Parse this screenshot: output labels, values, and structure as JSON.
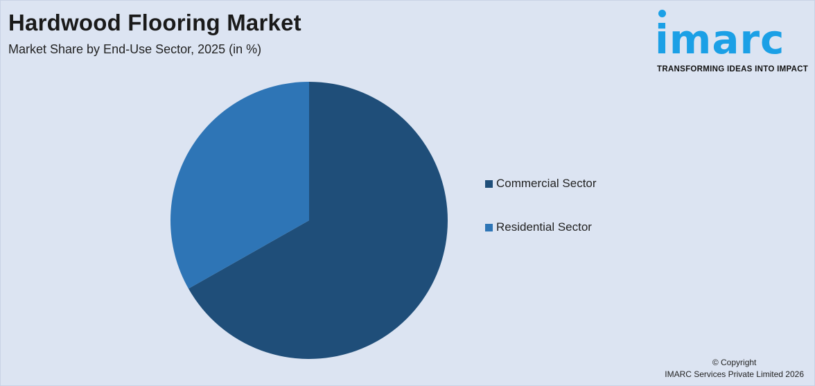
{
  "title": "Hardwood Flooring Market",
  "subtitle": "Market Share by End-Use Sector, 2025 (in %)",
  "logo": {
    "word": "imarc",
    "tagline": "TRANSFORMING IDEAS INTO IMPACT",
    "color": "#1ba0e6"
  },
  "chart_data": {
    "type": "pie",
    "categories": [
      "Commercial Sector",
      "Residential Sector"
    ],
    "values": [
      66.8,
      33.2
    ],
    "colors": [
      "#1f4e79",
      "#2e75b6"
    ],
    "start_angle": "12 o'clock, clockwise",
    "legend_placement": "right"
  },
  "copyright": {
    "line1": "© Copyright",
    "line2": "IMARC Services Private Limited 2026"
  }
}
